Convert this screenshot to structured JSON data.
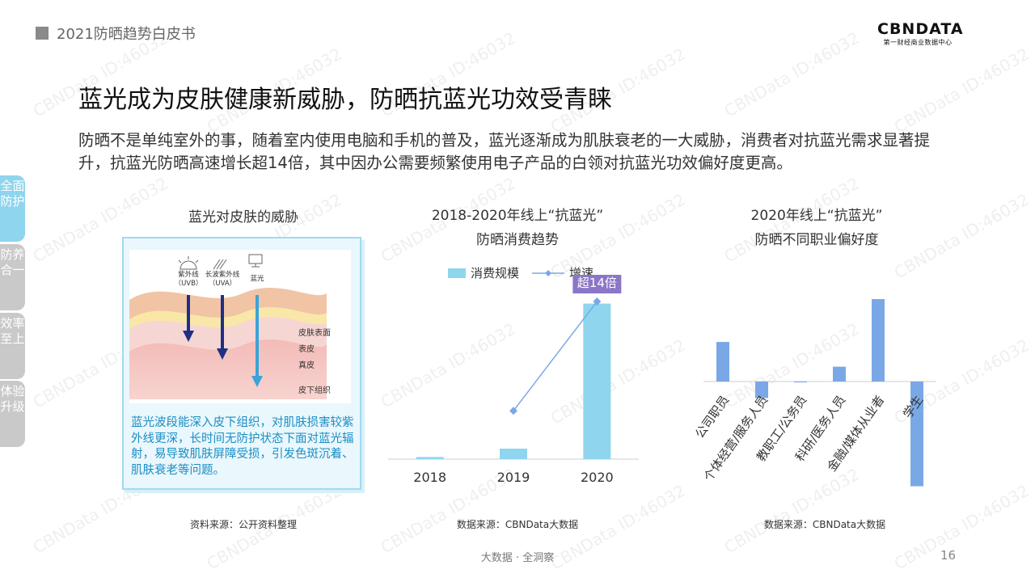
{
  "header": {
    "report_title": "2021防晒趋势白皮书"
  },
  "logo": {
    "brand": "CBNDATA",
    "subtitle": "第一财经商业数据中心"
  },
  "headline": "蓝光成为皮肤健康新威胁，防晒抗蓝光功效受青睐",
  "intro": "防晒不是单纯室外的事，随着室内使用电脑和手机的普及，蓝光逐渐成为肌肤衰老的一大威胁，消费者对抗蓝光需求显著提升，抗蓝光防晒高速增长超14倍，其中因办公需要频繁使用电子产品的白领对抗蓝光功效偏好度更高。",
  "side_tabs": [
    {
      "label": "全面防护",
      "active": true
    },
    {
      "label": "防养合一",
      "active": false
    },
    {
      "label": "效率至上",
      "active": false
    },
    {
      "label": "体验升级",
      "active": false
    }
  ],
  "skin_panel": {
    "title": "蓝光对皮肤的威胁",
    "rays": [
      {
        "label": "紫外线",
        "sub": "（UVB）"
      },
      {
        "label": "长波紫外线",
        "sub": "（UVA）"
      },
      {
        "label": "蓝光",
        "sub": ""
      }
    ],
    "layers": [
      "皮肤表面",
      "表皮",
      "真皮",
      "皮下组织"
    ],
    "caption": "蓝光波段能深入皮下组织，对肌肤损害较紫外线更深，长时间无防护状态下面对蓝光辐射，易导致肌肤屏障受损，引发色斑沉着、肌肤衰老等问题。",
    "source": "资料来源：公开资料整理",
    "colors": {
      "ray_dark": "#1f2f86",
      "ray_light": "#3aa3d9"
    }
  },
  "chart_data": [
    {
      "type": "bar",
      "title": "2018-2020年线上“抗蓝光”",
      "subtitle": "防晒消费趋势",
      "categories": [
        "2018",
        "2019",
        "2020"
      ],
      "series": [
        {
          "name": "消费规模",
          "type": "bar",
          "values": [
            0.2,
            1,
            14.8
          ],
          "color": "#8fd5ee"
        },
        {
          "name": "增速",
          "type": "line",
          "values": [
            null,
            4.6,
            15.0
          ],
          "color": "#7aa8e6"
        }
      ],
      "ylim": [
        0,
        16
      ],
      "annotation": "超14倍",
      "annotation_color": "#8b76c7",
      "grid": false,
      "legend": "top",
      "source": "数据来源：CBNData大数据"
    },
    {
      "type": "bar",
      "title": "2020年线上“抗蓝光”",
      "subtitle": "防晒不同职业偏好度",
      "categories": [
        "公司职员",
        "个体经营/服务人员",
        "教职工/公务员",
        "科研/医务人员",
        "金融/媒体从业者",
        "学生"
      ],
      "values": [
        0.48,
        -0.2,
        -0.01,
        0.18,
        1.0,
        -1.27
      ],
      "color": "#7aa8e6",
      "grid": false,
      "source": "数据来源：CBNData大数据"
    }
  ],
  "footer": {
    "text": "大数据 · 全洞察",
    "page_number": "16"
  },
  "watermark": "CBNData ID:46032"
}
